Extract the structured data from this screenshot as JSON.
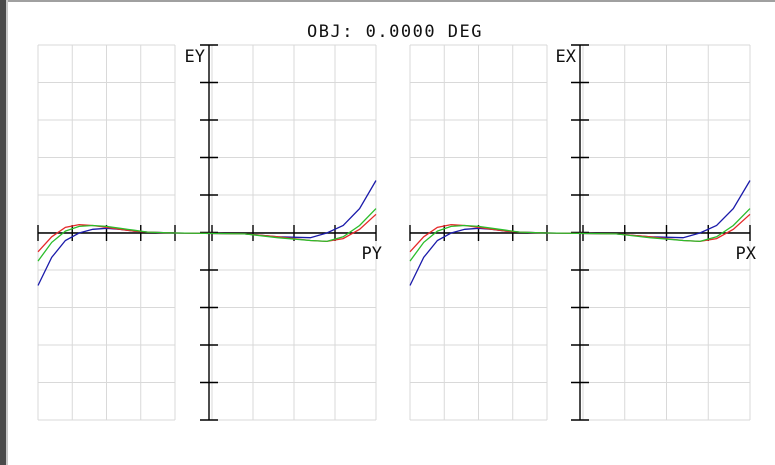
{
  "title": "OBJ: 0.0000 DEG",
  "chart_data": [
    {
      "type": "line",
      "ylabel": "EY",
      "xlabel": "PY",
      "xlim": [
        -1,
        1
      ],
      "ylim": [
        -1,
        1
      ],
      "grid": true,
      "series": [
        {
          "color": "#1b1baa",
          "x": [
            -1,
            -0.9,
            -0.8,
            -0.7,
            -0.6,
            -0.5,
            -0.4,
            -0.3,
            -0.2,
            0,
            0.2,
            0.4,
            0.6,
            0.7,
            0.8,
            0.9,
            1
          ],
          "y": [
            -0.28,
            -0.13,
            -0.04,
            0.0,
            0.02,
            0.025,
            0.02,
            0.01,
            0.005,
            0,
            -0.005,
            -0.02,
            -0.025,
            0.0,
            0.04,
            0.13,
            0.28
          ]
        },
        {
          "color": "#e52a2a",
          "x": [
            -1,
            -0.9,
            -0.8,
            -0.7,
            -0.6,
            -0.5,
            -0.4,
            -0.3,
            -0.2,
            0,
            0.2,
            0.4,
            0.6,
            0.7,
            0.8,
            0.9,
            1
          ],
          "y": [
            -0.1,
            -0.02,
            0.03,
            0.045,
            0.04,
            0.03,
            0.02,
            0.01,
            0.005,
            0,
            -0.005,
            -0.02,
            -0.04,
            -0.045,
            -0.03,
            0.02,
            0.1
          ]
        },
        {
          "color": "#2bbd2b",
          "x": [
            -1,
            -0.9,
            -0.8,
            -0.7,
            -0.6,
            -0.5,
            -0.4,
            -0.3,
            -0.2,
            0,
            0.2,
            0.4,
            0.6,
            0.7,
            0.8,
            0.9,
            1
          ],
          "y": [
            -0.15,
            -0.05,
            0.01,
            0.035,
            0.04,
            0.035,
            0.025,
            0.015,
            0.005,
            0,
            -0.005,
            -0.025,
            -0.04,
            -0.045,
            -0.02,
            0.04,
            0.13
          ]
        }
      ]
    },
    {
      "type": "line",
      "ylabel": "EX",
      "xlabel": "PX",
      "xlim": [
        -1,
        1
      ],
      "ylim": [
        -1,
        1
      ],
      "grid": true,
      "series": [
        {
          "color": "#1b1baa",
          "x": [
            -1,
            -0.9,
            -0.8,
            -0.7,
            -0.6,
            -0.5,
            -0.4,
            -0.3,
            -0.2,
            0,
            0.2,
            0.4,
            0.6,
            0.7,
            0.8,
            0.9,
            1
          ],
          "y": [
            -0.28,
            -0.13,
            -0.04,
            0.0,
            0.02,
            0.025,
            0.02,
            0.01,
            0.005,
            0,
            -0.005,
            -0.02,
            -0.025,
            0.0,
            0.04,
            0.13,
            0.28
          ]
        },
        {
          "color": "#e52a2a",
          "x": [
            -1,
            -0.9,
            -0.8,
            -0.7,
            -0.6,
            -0.5,
            -0.4,
            -0.3,
            -0.2,
            0,
            0.2,
            0.4,
            0.6,
            0.7,
            0.8,
            0.9,
            1
          ],
          "y": [
            -0.1,
            -0.02,
            0.03,
            0.045,
            0.04,
            0.03,
            0.02,
            0.01,
            0.005,
            0,
            -0.005,
            -0.02,
            -0.04,
            -0.045,
            -0.03,
            0.02,
            0.1
          ]
        },
        {
          "color": "#2bbd2b",
          "x": [
            -1,
            -0.9,
            -0.8,
            -0.7,
            -0.6,
            -0.5,
            -0.4,
            -0.3,
            -0.2,
            0,
            0.2,
            0.4,
            0.6,
            0.7,
            0.8,
            0.9,
            1
          ],
          "y": [
            -0.15,
            -0.05,
            0.01,
            0.035,
            0.04,
            0.035,
            0.025,
            0.015,
            0.005,
            0,
            -0.005,
            -0.025,
            -0.04,
            -0.045,
            -0.02,
            0.04,
            0.13
          ]
        }
      ]
    }
  ]
}
